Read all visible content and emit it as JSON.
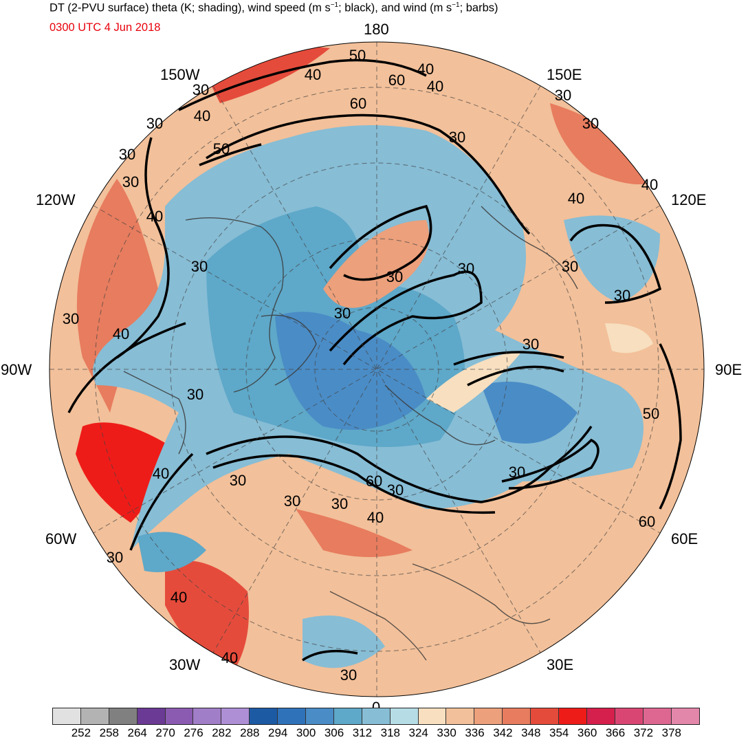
{
  "title": {
    "part1": "DT (2-PVU surface) theta (K; shading), wind speed (m s",
    "sup1": "−1",
    "part2": "; black), and wind (m s",
    "sup2": "−1",
    "part3": "; barbs)"
  },
  "valid_time": "0300 UTC 4 Jun 2018",
  "longitude_labels": {
    "top": "180",
    "upper_left": "150W",
    "upper_right": "150E",
    "left_upper": "120W",
    "right_upper": "120E",
    "left": "90W",
    "right": "90E",
    "left_lower": "60W",
    "right_lower": "60E",
    "lower_left": "30W",
    "lower_right": "30E",
    "bottom": "0"
  },
  "contour_labels": [
    "50",
    "40",
    "60",
    "40",
    "30",
    "60",
    "30",
    "30",
    "40",
    "30",
    "50",
    "30",
    "40",
    "30",
    "40",
    "40",
    "30",
    "30",
    "30",
    "30",
    "40",
    "30",
    "30",
    "30",
    "60",
    "30",
    "40",
    "30",
    "40",
    "30",
    "30",
    "60",
    "30",
    "50",
    "40",
    "40",
    "30",
    "30",
    "30",
    "30",
    "40",
    "30"
  ],
  "colorbar": {
    "colors": [
      "#e1e1e1",
      "#b3b3b3",
      "#808080",
      "#6b3a95",
      "#8a5bb0",
      "#a17ec8",
      "#ae8fd6",
      "#1d5aa4",
      "#2f72ba",
      "#4a8cc6",
      "#5ea8c9",
      "#87bdd5",
      "#b6dde6",
      "#f7dfbf",
      "#f2c09a",
      "#eca07b",
      "#e77c5e",
      "#e54b3b",
      "#ee1c18",
      "#d51f4c",
      "#da4674",
      "#dd6791",
      "#e387aa"
    ],
    "ticks": [
      "252",
      "258",
      "264",
      "270",
      "276",
      "282",
      "288",
      "294",
      "300",
      "306",
      "312",
      "318",
      "324",
      "330",
      "336",
      "342",
      "348",
      "354",
      "360",
      "366",
      "372",
      "378"
    ]
  }
}
